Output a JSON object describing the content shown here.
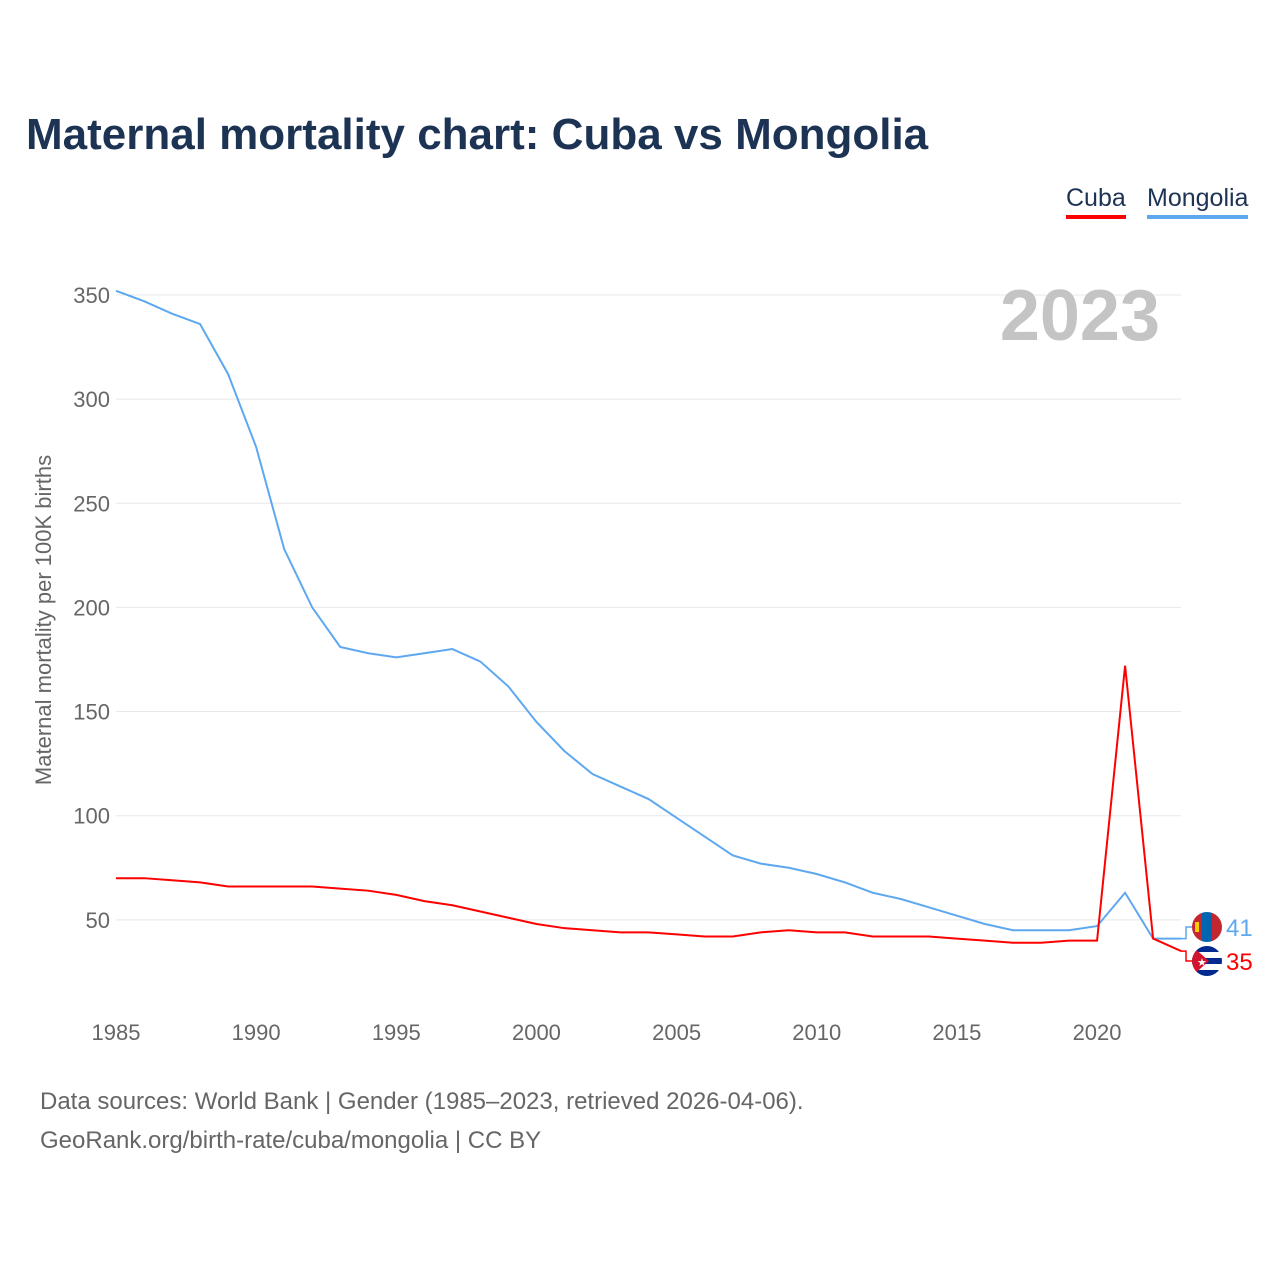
{
  "chart_data": {
    "type": "line",
    "title": "Maternal mortality chart: Cuba vs Mongolia",
    "ylabel": "Maternal mortality per 100K births",
    "xlabel": "",
    "year_label": "2023",
    "ylim": [
      0,
      350
    ],
    "xlim": [
      1985,
      2023
    ],
    "yticks": [
      50,
      100,
      150,
      200,
      250,
      300,
      350
    ],
    "xticks": [
      1985,
      1990,
      1995,
      2000,
      2005,
      2010,
      2015,
      2020
    ],
    "grid": true,
    "legend_placement": "top-right",
    "x": [
      1985,
      1986,
      1987,
      1988,
      1989,
      1990,
      1991,
      1992,
      1993,
      1994,
      1995,
      1996,
      1997,
      1998,
      1999,
      2000,
      2001,
      2002,
      2003,
      2004,
      2005,
      2006,
      2007,
      2008,
      2009,
      2010,
      2011,
      2012,
      2013,
      2014,
      2015,
      2016,
      2017,
      2018,
      2019,
      2020,
      2021,
      2022,
      2023
    ],
    "series": [
      {
        "name": "Cuba",
        "color": "#ff0000",
        "end_label": "35",
        "values": [
          70,
          70,
          69,
          68,
          66,
          66,
          66,
          66,
          65,
          64,
          62,
          59,
          57,
          54,
          51,
          48,
          46,
          45,
          44,
          44,
          43,
          42,
          42,
          44,
          45,
          44,
          44,
          42,
          42,
          42,
          41,
          40,
          39,
          39,
          40,
          40,
          172,
          41,
          35
        ]
      },
      {
        "name": "Mongolia",
        "color": "#5ea8f0",
        "end_label": "41",
        "values": [
          352,
          347,
          341,
          336,
          312,
          277,
          228,
          200,
          181,
          178,
          176,
          178,
          180,
          174,
          162,
          145,
          131,
          120,
          114,
          108,
          99,
          90,
          81,
          77,
          75,
          72,
          68,
          63,
          60,
          56,
          52,
          48,
          45,
          45,
          45,
          47,
          63,
          41,
          41
        ]
      }
    ]
  },
  "footer": {
    "line1": "Data sources: World Bank | Gender (1985–2023, retrieved 2026-04-06).",
    "line2": "GeoRank.org/birth-rate/cuba/mongolia | CC BY"
  }
}
